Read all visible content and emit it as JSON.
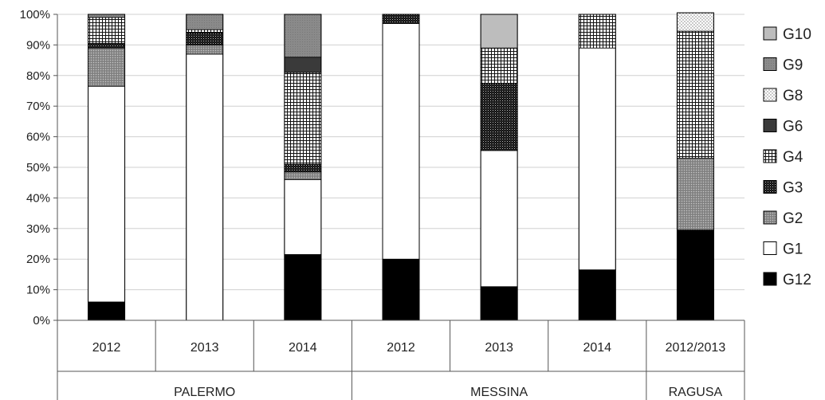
{
  "chart_data": {
    "type": "bar",
    "stacked": true,
    "percent": true,
    "ylim": [
      0,
      100
    ],
    "yticks": [
      "0%",
      "10%",
      "20%",
      "30%",
      "40%",
      "50%",
      "60%",
      "70%",
      "80%",
      "90%",
      "100%"
    ],
    "grid": true,
    "legend_position": "right",
    "groups": [
      {
        "label": "PALERMO",
        "categories": [
          "2012",
          "2013",
          "2014"
        ]
      },
      {
        "label": "MESSINA",
        "categories": [
          "2012",
          "2013",
          "2014"
        ]
      },
      {
        "label": "RAGUSA",
        "categories": [
          "2012/2013"
        ]
      }
    ],
    "series": [
      {
        "name": "G12",
        "pattern": "black",
        "values": [
          6,
          0,
          21.5,
          20,
          11,
          16.5,
          29.5
        ]
      },
      {
        "name": "G1",
        "pattern": "white",
        "values": [
          70.5,
          87,
          24.5,
          77,
          44.5,
          72.5,
          0
        ]
      },
      {
        "name": "G2",
        "pattern": "dotted-gray",
        "values": [
          12.5,
          3,
          2.5,
          0,
          0,
          0,
          23.5
        ]
      },
      {
        "name": "G3",
        "pattern": "dark-check",
        "values": [
          1.5,
          4,
          2.5,
          3,
          22,
          0,
          0
        ]
      },
      {
        "name": "G4",
        "pattern": "grid",
        "values": [
          8.5,
          1,
          30,
          0,
          11.5,
          11,
          41.5
        ]
      },
      {
        "name": "G6",
        "pattern": "dark-gray",
        "values": [
          0,
          0,
          5,
          0,
          0,
          0,
          0
        ]
      },
      {
        "name": "G8",
        "pattern": "light-dotted",
        "values": [
          0,
          0,
          0,
          0,
          0,
          0,
          6
        ]
      },
      {
        "name": "G9",
        "pattern": "mid-gray",
        "values": [
          1,
          5,
          14,
          0,
          0,
          0,
          0
        ]
      },
      {
        "name": "G10",
        "pattern": "light-gray",
        "values": [
          0,
          0,
          0,
          0,
          11,
          0,
          0
        ]
      }
    ],
    "legend_order": [
      "G10",
      "G9",
      "G8",
      "G6",
      "G4",
      "G3",
      "G2",
      "G1",
      "G12"
    ]
  }
}
